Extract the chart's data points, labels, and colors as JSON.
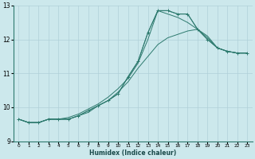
{
  "xlabel": "Humidex (Indice chaleur)",
  "bg_color": "#cce8ec",
  "grid_color": "#b0d0d8",
  "line_color": "#2d7a6e",
  "xlim": [
    -0.5,
    23.5
  ],
  "ylim": [
    9.0,
    13.0
  ],
  "xticks": [
    0,
    1,
    2,
    3,
    4,
    5,
    6,
    7,
    8,
    9,
    10,
    11,
    12,
    13,
    14,
    15,
    16,
    17,
    18,
    19,
    20,
    21,
    22,
    23
  ],
  "yticks": [
    9,
    10,
    11,
    12,
    13
  ],
  "line1_x": [
    0,
    1,
    2,
    3,
    4,
    5,
    6,
    7,
    8,
    9,
    10,
    11,
    12,
    13,
    14,
    15,
    16,
    17,
    18,
    19,
    20,
    21,
    22,
    23
  ],
  "line1_y": [
    9.65,
    9.55,
    9.55,
    9.65,
    9.65,
    9.65,
    9.75,
    9.85,
    10.05,
    10.2,
    10.45,
    10.75,
    11.15,
    11.5,
    11.85,
    12.05,
    12.15,
    12.25,
    12.3,
    12.1,
    11.75,
    11.65,
    11.6,
    11.6
  ],
  "line2_x": [
    0,
    1,
    2,
    3,
    4,
    5,
    6,
    7,
    8,
    9,
    10,
    11,
    12,
    13,
    14,
    15,
    16,
    17,
    18,
    19,
    20,
    21,
    22,
    23
  ],
  "line2_y": [
    9.65,
    9.55,
    9.55,
    9.65,
    9.65,
    9.7,
    9.8,
    9.95,
    10.1,
    10.3,
    10.55,
    10.85,
    11.3,
    12.0,
    12.85,
    12.75,
    12.65,
    12.5,
    12.3,
    12.05,
    11.75,
    11.65,
    11.6,
    11.6
  ],
  "line3_x": [
    0,
    1,
    2,
    3,
    4,
    5,
    6,
    7,
    8,
    9,
    10,
    11,
    12,
    13,
    14,
    15,
    16,
    17,
    18,
    19,
    20,
    21,
    22,
    23
  ],
  "line3_y": [
    9.65,
    9.55,
    9.55,
    9.65,
    9.65,
    9.65,
    9.75,
    9.9,
    10.05,
    10.2,
    10.4,
    10.9,
    11.35,
    12.2,
    12.85,
    12.85,
    12.75,
    12.75,
    12.3,
    12.0,
    11.75,
    11.65,
    11.6,
    11.6
  ],
  "line4_x": [
    0,
    1,
    2,
    3,
    4,
    5,
    6,
    7,
    8,
    9,
    10,
    11,
    12,
    13,
    14,
    15,
    16,
    17,
    18,
    19,
    20,
    21,
    22,
    23
  ],
  "line4_y": [
    9.65,
    9.55,
    9.55,
    9.65,
    9.65,
    9.65,
    9.75,
    9.9,
    10.05,
    10.2,
    10.4,
    10.9,
    11.35,
    12.2,
    12.85,
    12.85,
    12.75,
    12.75,
    12.3,
    12.0,
    11.75,
    11.65,
    11.6,
    11.6
  ]
}
